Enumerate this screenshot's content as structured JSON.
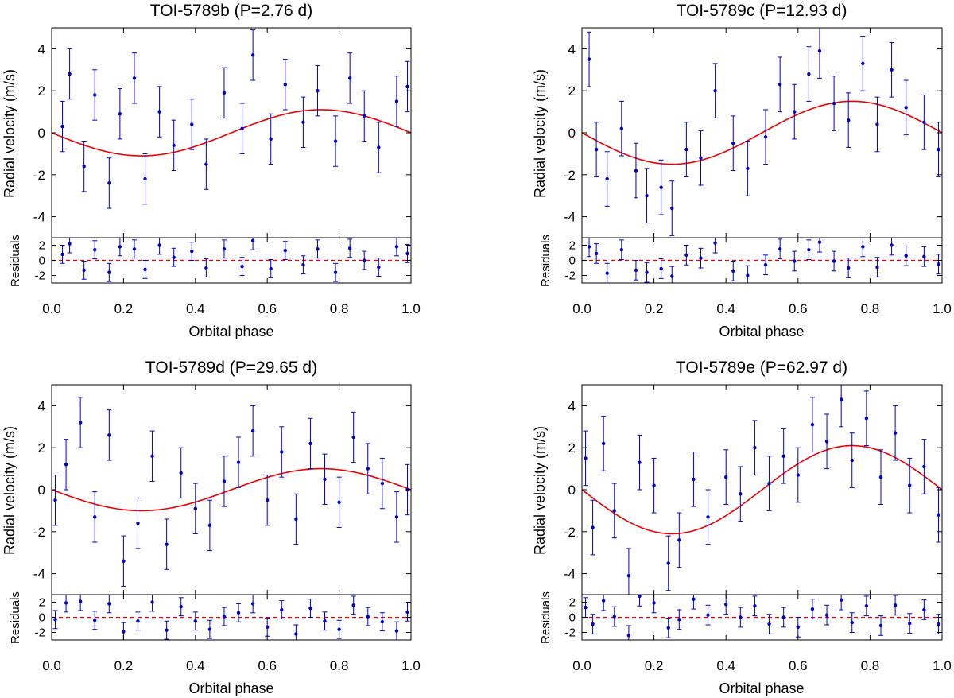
{
  "chart_data": [
    {
      "type": "scatter",
      "title": "TOI-5789b (P=2.76 d)",
      "xlabel": "Orbital phase",
      "ylabel": "Radial velocity (m/s)",
      "residual_label": "Residuals",
      "xlim": [
        0.0,
        1.0
      ],
      "ylim": [
        -5.0,
        5.0
      ],
      "residual_ylim": [
        -3.0,
        3.0
      ],
      "xticks": [
        "0.0",
        "0.2",
        "0.4",
        "0.6",
        "0.8",
        "1.0"
      ],
      "xtick_values": [
        0.0,
        0.2,
        0.4,
        0.6,
        0.8,
        1.0
      ],
      "yticks": [
        "-4",
        "-2",
        "0",
        "2",
        "4"
      ],
      "ytick_values": [
        -4,
        -2,
        0,
        2,
        4
      ],
      "residual_yticks": [
        "-2",
        "0",
        "2"
      ],
      "residual_ytick_values": [
        -2,
        0,
        2
      ],
      "model": {
        "name": "Keplerian fit",
        "amplitude": 1.1,
        "color": "#ee0000"
      },
      "series": [
        {
          "name": "RV data",
          "color": "#0000cc",
          "x": [
            0.03,
            0.05,
            0.09,
            0.12,
            0.16,
            0.19,
            0.23,
            0.26,
            0.3,
            0.34,
            0.39,
            0.43,
            0.48,
            0.53,
            0.56,
            0.61,
            0.65,
            0.7,
            0.74,
            0.79,
            0.83,
            0.87,
            0.91,
            0.96,
            0.99
          ],
          "y": [
            0.3,
            2.8,
            -1.6,
            1.8,
            -2.4,
            0.9,
            2.6,
            -2.2,
            1.0,
            -0.6,
            0.4,
            -1.5,
            1.9,
            0.2,
            3.7,
            -0.3,
            2.3,
            0.5,
            2.0,
            -0.4,
            2.6,
            0.8,
            -0.7,
            1.5,
            2.2
          ],
          "err": 1.2,
          "residuals": [
            0.8,
            2.2,
            -1.3,
            1.4,
            -1.6,
            1.8,
            1.5,
            -1.2,
            2.0,
            0.4,
            1.2,
            -1.0,
            1.5,
            -0.8,
            2.6,
            -1.1,
            1.3,
            -0.6,
            1.5,
            -1.6,
            1.6,
            0.0,
            -0.9,
            1.8,
            0.9
          ]
        }
      ]
    },
    {
      "type": "scatter",
      "title": "TOI-5789c (P=12.93 d)",
      "xlabel": "Orbital phase",
      "ylabel": "Radial velocity (m/s)",
      "residual_label": "Residuals",
      "xlim": [
        0.0,
        1.0
      ],
      "ylim": [
        -5.0,
        5.0
      ],
      "residual_ylim": [
        -3.0,
        3.0
      ],
      "xticks": [
        "0.0",
        "0.2",
        "0.4",
        "0.6",
        "0.8",
        "1.0"
      ],
      "xtick_values": [
        0.0,
        0.2,
        0.4,
        0.6,
        0.8,
        1.0
      ],
      "yticks": [
        "-4",
        "-2",
        "0",
        "2",
        "4"
      ],
      "ytick_values": [
        -4,
        -2,
        0,
        2,
        4
      ],
      "residual_yticks": [
        "-2",
        "0",
        "2"
      ],
      "residual_ytick_values": [
        -2,
        0,
        2
      ],
      "model": {
        "name": "Keplerian fit",
        "amplitude": 1.5,
        "color": "#ee0000"
      },
      "series": [
        {
          "name": "RV data",
          "color": "#0000cc",
          "x": [
            0.02,
            0.04,
            0.07,
            0.11,
            0.15,
            0.18,
            0.22,
            0.25,
            0.29,
            0.33,
            0.37,
            0.42,
            0.46,
            0.51,
            0.55,
            0.59,
            0.63,
            0.66,
            0.7,
            0.74,
            0.78,
            0.82,
            0.86,
            0.9,
            0.95,
            0.99
          ],
          "y": [
            3.5,
            -0.8,
            -2.2,
            0.2,
            -1.8,
            -3.0,
            -2.6,
            -3.6,
            -0.8,
            -1.2,
            2.0,
            -0.5,
            -1.7,
            -0.2,
            2.3,
            1.0,
            2.8,
            3.9,
            1.4,
            0.6,
            3.3,
            0.4,
            3.0,
            1.2,
            0.5,
            -0.8
          ],
          "err": 1.3,
          "residuals": [
            1.8,
            0.9,
            -1.7,
            1.4,
            -1.3,
            -1.6,
            -1.1,
            -2.1,
            0.7,
            0.3,
            2.3,
            -1.4,
            -2.0,
            -0.6,
            1.5,
            -0.1,
            1.4,
            2.4,
            -0.1,
            -1.0,
            1.8,
            -0.9,
            2.0,
            0.6,
            0.5,
            -0.5
          ]
        }
      ]
    },
    {
      "type": "scatter",
      "title": "TOI-5789d (P=29.65 d)",
      "xlabel": "Orbital phase",
      "ylabel": "Radial velocity (m/s)",
      "residual_label": "Residuals",
      "xlim": [
        0.0,
        1.0
      ],
      "ylim": [
        -5.0,
        5.0
      ],
      "residual_ylim": [
        -3.0,
        3.0
      ],
      "xticks": [
        "0.0",
        "0.2",
        "0.4",
        "0.6",
        "0.8",
        "1.0"
      ],
      "xtick_values": [
        0.0,
        0.2,
        0.4,
        0.6,
        0.8,
        1.0
      ],
      "yticks": [
        "-4",
        "-2",
        "0",
        "2",
        "4"
      ],
      "ytick_values": [
        -4,
        -2,
        0,
        2,
        4
      ],
      "residual_yticks": [
        "-2",
        "0",
        "2"
      ],
      "residual_ytick_values": [
        -2,
        0,
        2
      ],
      "model": {
        "name": "Keplerian fit",
        "amplitude": 1.0,
        "color": "#ee0000"
      },
      "series": [
        {
          "name": "RV data",
          "color": "#0000cc",
          "x": [
            0.01,
            0.04,
            0.08,
            0.12,
            0.16,
            0.2,
            0.24,
            0.28,
            0.32,
            0.36,
            0.4,
            0.44,
            0.48,
            0.52,
            0.56,
            0.6,
            0.64,
            0.68,
            0.72,
            0.76,
            0.8,
            0.84,
            0.88,
            0.92,
            0.96,
            0.99
          ],
          "y": [
            -0.5,
            1.2,
            3.2,
            -1.3,
            2.6,
            -3.4,
            -1.6,
            1.6,
            -2.6,
            0.8,
            -0.9,
            -1.7,
            0.4,
            1.3,
            2.8,
            -0.5,
            1.8,
            -1.4,
            2.2,
            0.5,
            -0.6,
            2.5,
            1.0,
            0.3,
            -1.3,
            0.0
          ],
          "err": 1.2,
          "residuals": [
            -0.3,
            1.9,
            2.1,
            -0.4,
            1.8,
            -1.9,
            -0.5,
            2.0,
            -1.7,
            1.4,
            -0.5,
            -1.6,
            0.1,
            0.6,
            1.8,
            -1.3,
            1.0,
            -2.2,
            1.2,
            -0.5,
            -1.6,
            1.6,
            0.1,
            -0.6,
            -1.8,
            0.7
          ]
        }
      ]
    },
    {
      "type": "scatter",
      "title": "TOI-5789e (P=62.97 d)",
      "xlabel": "Orbital phase",
      "ylabel": "Radial velocity (m/s)",
      "residual_label": "Residuals",
      "xlim": [
        0.0,
        1.0
      ],
      "ylim": [
        -5.0,
        5.0
      ],
      "residual_ylim": [
        -3.0,
        3.0
      ],
      "xticks": [
        "0.0",
        "0.2",
        "0.4",
        "0.6",
        "0.8",
        "1.0"
      ],
      "xtick_values": [
        0.0,
        0.2,
        0.4,
        0.6,
        0.8,
        1.0
      ],
      "yticks": [
        "-4",
        "-2",
        "0",
        "2",
        "4"
      ],
      "ytick_values": [
        -4,
        -2,
        0,
        2,
        4
      ],
      "residual_yticks": [
        "-2",
        "0",
        "2"
      ],
      "residual_ytick_values": [
        -2,
        0,
        2
      ],
      "model": {
        "name": "Keplerian fit",
        "amplitude": 2.1,
        "color": "#ee0000"
      },
      "series": [
        {
          "name": "RV data",
          "color": "#0000cc",
          "x": [
            0.01,
            0.03,
            0.06,
            0.09,
            0.13,
            0.16,
            0.2,
            0.24,
            0.27,
            0.31,
            0.35,
            0.4,
            0.44,
            0.48,
            0.52,
            0.56,
            0.6,
            0.64,
            0.68,
            0.72,
            0.75,
            0.79,
            0.83,
            0.87,
            0.91,
            0.95,
            0.99
          ],
          "y": [
            1.5,
            -1.8,
            2.2,
            -1.0,
            -4.1,
            1.3,
            0.2,
            -3.5,
            -2.4,
            0.5,
            -1.3,
            0.6,
            -0.2,
            2.0,
            0.3,
            1.6,
            0.7,
            3.1,
            2.3,
            4.3,
            1.4,
            3.4,
            0.6,
            2.7,
            0.2,
            1.1,
            -1.2
          ],
          "err": 1.3,
          "residuals": [
            1.3,
            -0.9,
            2.2,
            0.1,
            -2.4,
            2.8,
            1.9,
            -1.4,
            -0.3,
            2.4,
            0.3,
            1.7,
            0.0,
            1.5,
            -0.9,
            0.0,
            -1.3,
            1.1,
            0.3,
            2.3,
            -0.7,
            1.5,
            -1.1,
            1.6,
            -0.8,
            1.0,
            -0.9
          ]
        }
      ]
    }
  ]
}
